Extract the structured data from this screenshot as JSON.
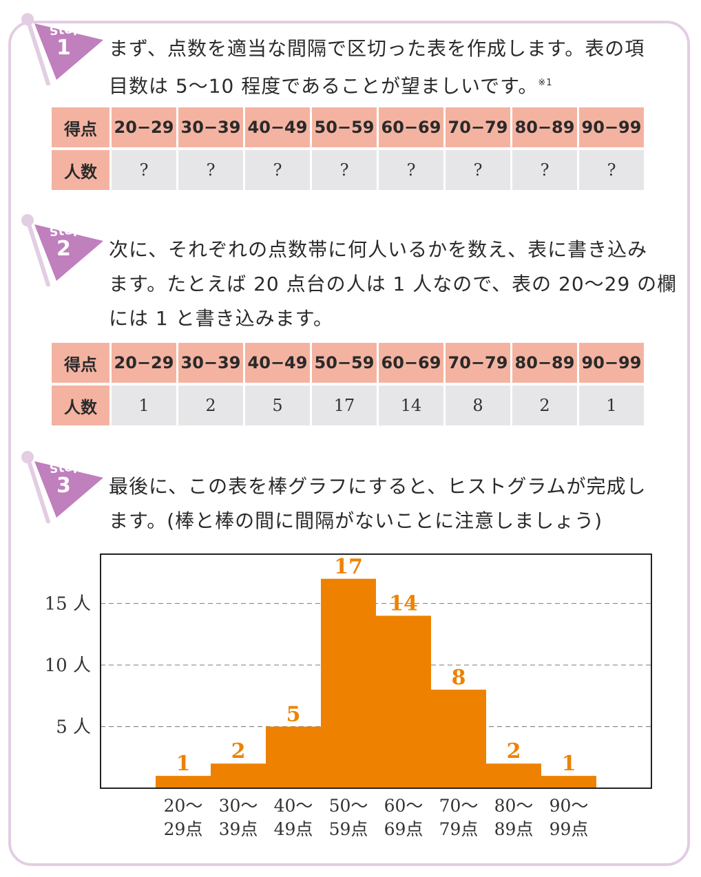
{
  "steps": [
    {
      "word": "Step",
      "number": "1",
      "text_line1": "まず、点数を適当な間隔で区切った表を作成します。表の項",
      "text_line2": "目数は 5〜10 程度であることが望ましいです。",
      "footnote": "※1"
    },
    {
      "word": "Step",
      "number": "2",
      "text_line1": "次に、それぞれの点数帯に何人いるかを数え、表に書き込み",
      "text_line2": "ます。たとえば 20 点台の人は 1 人なので、表の 20〜29 の欄",
      "text_line3": "には 1 と書き込みます。"
    },
    {
      "word": "Step",
      "number": "3",
      "text_line1": "最後に、この表を棒グラフにすると、ヒストグラムが完成し",
      "text_line2": "ます。(棒と棒の間に間隔がないことに注意しましょう)"
    }
  ],
  "table1": {
    "row1_head": "得点",
    "row2_head": "人数",
    "ranges": [
      "20−29",
      "30−39",
      "40−49",
      "50−59",
      "60−69",
      "70−79",
      "80−89",
      "90−99"
    ],
    "values": [
      "?",
      "?",
      "?",
      "?",
      "?",
      "?",
      "?",
      "?"
    ]
  },
  "table2": {
    "row1_head": "得点",
    "row2_head": "人数",
    "ranges": [
      "20−29",
      "30−39",
      "40−49",
      "50−59",
      "60−69",
      "70−79",
      "80−89",
      "90−99"
    ],
    "values": [
      "1",
      "2",
      "5",
      "17",
      "14",
      "8",
      "2",
      "1"
    ]
  },
  "colors": {
    "frame": "#e2cde3",
    "flag": "#c07fbd",
    "table_header": "#f4b3a1",
    "table_value": "#e6e6e8",
    "bar": "#ee8200",
    "bar_label": "#ee8200"
  },
  "chart_data": {
    "type": "bar",
    "categories_line1": [
      "20〜",
      "30〜",
      "40〜",
      "50〜",
      "60〜",
      "70〜",
      "80〜",
      "90〜"
    ],
    "categories_line2": [
      "29点",
      "39点",
      "49点",
      "59点",
      "69点",
      "79点",
      "89点",
      "99点"
    ],
    "values": [
      1,
      2,
      5,
      17,
      14,
      8,
      2,
      1
    ],
    "yticks": [
      5,
      10,
      15
    ],
    "ytick_labels": [
      "5 人",
      "10 人",
      "15 人"
    ],
    "ylim": [
      0,
      19
    ],
    "grid": "dashed horizontal at ticks",
    "bar_gap": 0
  }
}
